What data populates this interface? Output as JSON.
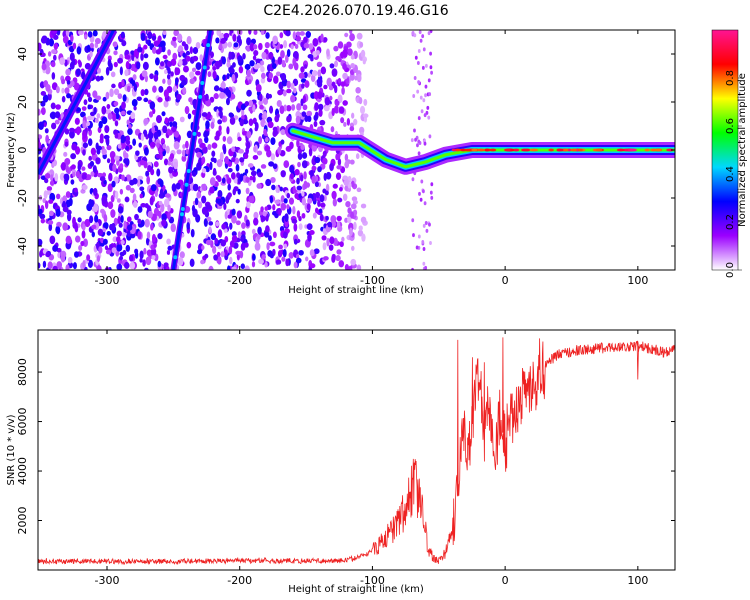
{
  "chart_data": [
    {
      "type": "heatmap",
      "title": "C2E4.2026.070.19.46.G16",
      "xlabel": "Height of straight line (km)",
      "ylabel": "Frequency (Hz)",
      "xlim": [
        -352,
        128
      ],
      "ylim": [
        -50,
        50
      ],
      "xticks": [
        -300,
        -200,
        -100,
        0,
        100
      ],
      "yticks": [
        -40,
        -20,
        0,
        20,
        40
      ],
      "colorbar": {
        "label": "Normalized spectral amplitude",
        "range": [
          0.0,
          1.0
        ],
        "ticks": [
          "0.0",
          "0.2",
          "0.4",
          "0.6",
          "0.8"
        ],
        "tick_values": [
          0.0,
          0.2,
          0.4,
          0.6,
          0.8
        ],
        "colors": [
          "#ffffff",
          "#9b00ff",
          "#0000ff",
          "#00d8ff",
          "#00ff00",
          "#ffff00",
          "#ff0000",
          "#ff1493"
        ]
      },
      "features": [
        {
          "name": "steep line",
          "x": [
            -250,
            -222
          ],
          "y": [
            -50,
            50
          ]
        },
        {
          "name": "left diagonal",
          "x": [
            -352,
            -295
          ],
          "y": [
            -10,
            50
          ]
        },
        {
          "name": "main trace",
          "x": [
            -160,
            -130,
            -110,
            -90,
            -75,
            -60,
            -45,
            -25,
            0,
            50,
            100,
            128
          ],
          "y": [
            8,
            3,
            3,
            -4,
            -7,
            -5,
            -2,
            0,
            0,
            0,
            0,
            0
          ]
        }
      ]
    },
    {
      "type": "line",
      "xlabel": "Height of straight line (km)",
      "ylabel": "SNR (10 * v/v)",
      "xlim": [
        -352,
        128
      ],
      "ylim": [
        0,
        9700
      ],
      "xticks": [
        -300,
        -200,
        -100,
        0,
        100
      ],
      "yticks": [
        2000,
        4000,
        6000,
        8000
      ],
      "color": "#ee2222",
      "series": [
        {
          "name": "SNR",
          "x": [
            -352,
            -300,
            -250,
            -200,
            -150,
            -120,
            -105,
            -95,
            -85,
            -75,
            -68,
            -62,
            -58,
            -54,
            -50,
            -45,
            -40,
            -36,
            -32,
            -28,
            -24,
            -20,
            -16,
            -12,
            -8,
            -4,
            0,
            5,
            10,
            15,
            20,
            25,
            30,
            40,
            50,
            60,
            80,
            100,
            110,
            120,
            128
          ],
          "y": [
            350,
            350,
            350,
            380,
            370,
            380,
            600,
            1000,
            1600,
            2500,
            3500,
            2200,
            900,
            450,
            380,
            700,
            1500,
            3000,
            5600,
            5000,
            6200,
            7800,
            5600,
            6900,
            4800,
            6200,
            4900,
            6200,
            6500,
            7200,
            7500,
            7900,
            8300,
            8700,
            8850,
            8900,
            9000,
            9050,
            8950,
            8800,
            8900
          ]
        }
      ],
      "spikes": [
        {
          "x": -36,
          "y": 9300
        },
        {
          "x": -25,
          "y": 8600
        },
        {
          "x": -16,
          "y": 8400
        },
        {
          "x": -2,
          "y": 9400
        }
      ],
      "dip": {
        "x": 100,
        "y": 7700
      }
    }
  ]
}
